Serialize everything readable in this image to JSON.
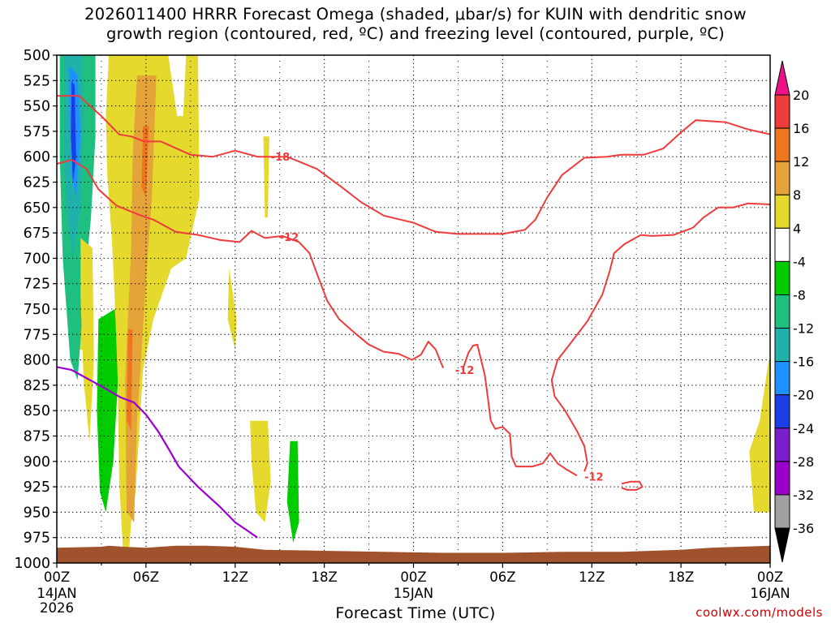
{
  "title": {
    "line1": "2026011400 HRRR Forecast Omega (shaded, μbar/s) for KUIN with dendritic snow",
    "line2": "growth region (contoured, red, ºC) and freezing level (contoured, purple, ºC)"
  },
  "credit": "coolwx.com/models",
  "chart_data": {
    "type": "contour",
    "xlabel": "Forecast Time (UTC)",
    "ylabel": "",
    "x_range_hours": [
      0,
      48
    ],
    "y_range_mb": [
      500,
      1000
    ],
    "y_ticks": [
      500,
      525,
      550,
      575,
      600,
      625,
      650,
      675,
      700,
      725,
      750,
      775,
      800,
      825,
      850,
      875,
      900,
      925,
      950,
      975,
      1000
    ],
    "x_ticks": [
      {
        "h": 0,
        "label": "00Z",
        "sub1": "14JAN",
        "sub2": "2026"
      },
      {
        "h": 6,
        "label": "06Z"
      },
      {
        "h": 12,
        "label": "12Z"
      },
      {
        "h": 18,
        "label": "18Z"
      },
      {
        "h": 24,
        "label": "00Z",
        "sub1": "15JAN"
      },
      {
        "h": 30,
        "label": "06Z"
      },
      {
        "h": 36,
        "label": "12Z"
      },
      {
        "h": 42,
        "label": "18Z"
      },
      {
        "h": 48,
        "label": "00Z",
        "sub1": "16JAN"
      }
    ],
    "colorbar": {
      "labels": [
        "20",
        "16",
        "12",
        "8",
        "4",
        "-4",
        "-8",
        "-12",
        "-16",
        "-20",
        "-24",
        "-28",
        "-32",
        "-36"
      ],
      "colors": [
        "#ee1289",
        "#ee3b3b",
        "#ee7621",
        "#e5a43a",
        "#e5d92e",
        "#ffffff",
        "#00cc00",
        "#1fbf7f",
        "#20b2aa",
        "#1e90ff",
        "#1c3ee6",
        "#7b1fcc",
        "#9a00c8",
        "#a0a0a0",
        "#000000"
      ]
    },
    "omega_regions": [
      {
        "color": "#e5d92e",
        "points": [
          [
            0.5,
            500
          ],
          [
            2.5,
            500
          ],
          [
            2.5,
            600
          ],
          [
            2.0,
            700
          ],
          [
            1.8,
            790
          ],
          [
            1.0,
            790
          ],
          [
            0.5,
            700
          ]
        ]
      },
      {
        "color": "#1fbf7f",
        "points": [
          [
            0.2,
            500
          ],
          [
            2.6,
            500
          ],
          [
            2.6,
            580
          ],
          [
            2.3,
            660
          ],
          [
            1.9,
            720
          ],
          [
            1.4,
            820
          ],
          [
            0.9,
            800
          ],
          [
            0.4,
            700
          ],
          [
            0.2,
            600
          ]
        ]
      },
      {
        "color": "#20b2aa",
        "points": [
          [
            0.5,
            500
          ],
          [
            1.7,
            500
          ],
          [
            1.8,
            560
          ],
          [
            1.6,
            650
          ],
          [
            1.1,
            700
          ],
          [
            0.7,
            660
          ],
          [
            0.5,
            600
          ]
        ]
      },
      {
        "color": "#1e90ff",
        "points": [
          [
            0.8,
            510
          ],
          [
            1.4,
            520
          ],
          [
            1.6,
            580
          ],
          [
            1.3,
            640
          ],
          [
            1.0,
            620
          ],
          [
            0.9,
            570
          ]
        ]
      },
      {
        "color": "#1c3ee6",
        "points": [
          [
            1.0,
            525
          ],
          [
            1.2,
            530
          ],
          [
            1.3,
            600
          ],
          [
            1.1,
            625
          ],
          [
            0.95,
            580
          ]
        ]
      },
      {
        "color": "#e5d92e",
        "points": [
          [
            1.6,
            680
          ],
          [
            2.4,
            690
          ],
          [
            2.5,
            800
          ],
          [
            2.2,
            880
          ],
          [
            1.8,
            820
          ],
          [
            1.6,
            740
          ]
        ]
      },
      {
        "color": "#00cc00",
        "points": [
          [
            2.8,
            760
          ],
          [
            3.9,
            750
          ],
          [
            4.2,
            800
          ],
          [
            3.8,
            900
          ],
          [
            3.3,
            950
          ],
          [
            2.9,
            930
          ],
          [
            2.7,
            850
          ]
        ]
      },
      {
        "color": "#e5d92e",
        "points": [
          [
            3.5,
            500
          ],
          [
            9.5,
            500
          ],
          [
            9.6,
            640
          ],
          [
            8.7,
            700
          ],
          [
            7.7,
            710
          ],
          [
            6.5,
            760
          ],
          [
            5.8,
            810
          ],
          [
            5.3,
            930
          ],
          [
            5.0,
            960
          ],
          [
            4.8,
            1000
          ],
          [
            4.5,
            1000
          ],
          [
            4.2,
            920
          ],
          [
            4.1,
            820
          ],
          [
            3.9,
            740
          ],
          [
            3.7,
            680
          ],
          [
            3.4,
            620
          ],
          [
            3.3,
            560
          ]
        ]
      },
      {
        "color": "#e5a43a",
        "points": [
          [
            5.4,
            520
          ],
          [
            6.7,
            520
          ],
          [
            6.4,
            640
          ],
          [
            6.1,
            700
          ],
          [
            5.8,
            770
          ],
          [
            5.4,
            860
          ],
          [
            5.2,
            960
          ],
          [
            4.7,
            950
          ],
          [
            4.6,
            820
          ],
          [
            5.0,
            690
          ],
          [
            5.1,
            600
          ]
        ]
      },
      {
        "color": "#ee7621",
        "points": [
          [
            5.8,
            570
          ],
          [
            6.2,
            570
          ],
          [
            6.0,
            640
          ],
          [
            5.7,
            630
          ]
        ]
      },
      {
        "color": "#ee7621",
        "points": [
          [
            4.8,
            770
          ],
          [
            5.1,
            770
          ],
          [
            5.0,
            870
          ],
          [
            4.7,
            860
          ]
        ]
      },
      {
        "color": "#ffffff",
        "points": [
          [
            7.5,
            500
          ],
          [
            8.7,
            500
          ],
          [
            8.5,
            560
          ],
          [
            8.1,
            560
          ]
        ]
      },
      {
        "color": "#e5d92e",
        "points": [
          [
            11.6,
            710
          ],
          [
            12.1,
            760
          ],
          [
            12.0,
            790
          ],
          [
            11.5,
            760
          ]
        ]
      },
      {
        "color": "#e5d92e",
        "points": [
          [
            13.9,
            580
          ],
          [
            14.3,
            580
          ],
          [
            14.2,
            660
          ],
          [
            14.0,
            660
          ]
        ]
      },
      {
        "color": "#e5d92e",
        "points": [
          [
            13.0,
            860
          ],
          [
            14.2,
            860
          ],
          [
            14.4,
            920
          ],
          [
            14.0,
            960
          ],
          [
            13.4,
            950
          ],
          [
            13.1,
            900
          ]
        ]
      },
      {
        "color": "#00cc00",
        "points": [
          [
            15.7,
            880
          ],
          [
            16.2,
            880
          ],
          [
            16.3,
            960
          ],
          [
            15.9,
            980
          ],
          [
            15.5,
            940
          ]
        ]
      },
      {
        "color": "#e5d92e",
        "points": [
          [
            47.9,
            800
          ],
          [
            48.0,
            800
          ],
          [
            48.0,
            950
          ],
          [
            46.9,
            950
          ],
          [
            46.6,
            890
          ],
          [
            47.3,
            860
          ]
        ]
      }
    ],
    "red_contours": [
      {
        "label": "-18",
        "label_at": [
          14.4,
          600
        ],
        "points": [
          [
            0,
            540
          ],
          [
            1.5,
            540
          ],
          [
            3.0,
            560
          ],
          [
            4.2,
            578
          ],
          [
            5.0,
            580
          ],
          [
            5.9,
            585
          ],
          [
            7.0,
            585
          ],
          [
            9.0,
            598
          ],
          [
            10.5,
            600
          ],
          [
            12.0,
            594
          ],
          [
            13.5,
            600
          ],
          [
            15.5,
            600
          ],
          [
            17.5,
            612
          ],
          [
            19.0,
            628
          ],
          [
            20.5,
            645
          ],
          [
            22.0,
            658
          ],
          [
            24.0,
            665
          ],
          [
            25.5,
            674
          ],
          [
            27.0,
            676
          ],
          [
            28.5,
            676
          ],
          [
            30.0,
            676
          ],
          [
            31.5,
            672
          ],
          [
            32.2,
            662
          ],
          [
            33.0,
            640
          ],
          [
            34.0,
            618
          ],
          [
            35.5,
            601
          ],
          [
            37.0,
            600
          ],
          [
            38.0,
            598
          ],
          [
            39.5,
            598
          ],
          [
            40.8,
            592
          ],
          [
            42.0,
            576
          ],
          [
            43.0,
            564
          ],
          [
            45.0,
            566
          ],
          [
            46.5,
            573
          ],
          [
            48.0,
            578
          ]
        ]
      },
      {
        "label": "-12",
        "label_at": [
          15.0,
          679
        ],
        "points": [
          [
            0,
            607
          ],
          [
            1.0,
            603
          ],
          [
            2.0,
            612
          ],
          [
            2.8,
            632
          ],
          [
            4.0,
            648
          ],
          [
            5.5,
            657
          ],
          [
            6.5,
            662
          ],
          [
            8.0,
            674
          ],
          [
            9.5,
            677
          ],
          [
            11.0,
            682
          ],
          [
            12.3,
            684
          ],
          [
            13.1,
            673
          ],
          [
            14.0,
            680
          ],
          [
            15.2,
            678
          ],
          [
            16.3,
            684
          ],
          [
            17.0,
            695
          ],
          [
            17.5,
            715
          ],
          [
            18.2,
            742
          ],
          [
            19.0,
            760
          ],
          [
            20.0,
            773
          ],
          [
            21.0,
            785
          ],
          [
            22.0,
            792
          ],
          [
            23.0,
            794
          ],
          [
            23.9,
            800
          ],
          [
            24.5,
            795
          ],
          [
            25.0,
            782
          ],
          [
            25.5,
            790
          ],
          [
            26.0,
            808
          ]
        ]
      },
      {
        "label": "-12",
        "label_at": [
          26.8,
          810
        ],
        "points": [
          [
            27.3,
            810
          ],
          [
            27.7,
            793
          ],
          [
            28.0,
            786
          ],
          [
            28.3,
            785
          ],
          [
            28.8,
            815
          ],
          [
            29.0,
            837
          ],
          [
            29.2,
            860
          ],
          [
            29.5,
            868
          ],
          [
            30.0,
            866
          ],
          [
            30.5,
            873
          ],
          [
            30.6,
            895
          ],
          [
            30.9,
            905
          ],
          [
            32.0,
            905
          ],
          [
            32.7,
            902
          ],
          [
            33.2,
            892
          ],
          [
            33.7,
            902
          ],
          [
            34.3,
            908
          ],
          [
            35.0,
            914
          ]
        ]
      },
      {
        "label": "-12",
        "label_at": [
          35.5,
          915
        ],
        "points": [
          [
            35.5,
            910
          ],
          [
            35.7,
            902
          ],
          [
            35.5,
            885
          ],
          [
            35.0,
            870
          ],
          [
            34.2,
            850
          ],
          [
            33.5,
            836
          ],
          [
            33.3,
            820
          ],
          [
            33.7,
            800
          ],
          [
            34.5,
            785
          ],
          [
            35.7,
            762
          ],
          [
            36.7,
            736
          ],
          [
            37.2,
            713
          ],
          [
            37.5,
            695
          ],
          [
            38.2,
            686
          ],
          [
            39.3,
            677
          ],
          [
            40.0,
            678
          ]
        ]
      },
      {
        "label": "",
        "label_at": null,
        "points": [
          [
            40.0,
            678
          ],
          [
            41.5,
            677
          ],
          [
            42.8,
            670
          ],
          [
            43.5,
            660
          ],
          [
            44.5,
            650
          ],
          [
            45.5,
            650
          ],
          [
            46.5,
            646
          ],
          [
            48.0,
            647
          ]
        ]
      },
      {
        "label": "",
        "label_at": null,
        "points": [
          [
            38.0,
            922
          ],
          [
            38.6,
            920
          ],
          [
            39.2,
            920
          ],
          [
            39.4,
            925
          ],
          [
            39.0,
            928
          ],
          [
            38.4,
            928
          ],
          [
            38.0,
            926
          ]
        ]
      }
    ],
    "freezing_level": {
      "points": [
        [
          0,
          807
        ],
        [
          1.0,
          810
        ],
        [
          2.0,
          818
        ],
        [
          3.0,
          826
        ],
        [
          4.3,
          837
        ],
        [
          5.2,
          842
        ],
        [
          6.0,
          854
        ],
        [
          6.8,
          870
        ],
        [
          7.5,
          887
        ],
        [
          8.2,
          905
        ],
        [
          9.5,
          925
        ],
        [
          11.0,
          945
        ],
        [
          12.0,
          960
        ],
        [
          13.0,
          970
        ],
        [
          13.5,
          975
        ]
      ]
    },
    "terrain": {
      "color": "#a0522d",
      "top_mb": [
        [
          0,
          985
        ],
        [
          3.0,
          984
        ],
        [
          3.5,
          983
        ],
        [
          4.5,
          984
        ],
        [
          6.0,
          985
        ],
        [
          8.0,
          983
        ],
        [
          10.0,
          983
        ],
        [
          12.0,
          984
        ],
        [
          14.0,
          987
        ],
        [
          18.0,
          988
        ],
        [
          22.0,
          989
        ],
        [
          26.0,
          990
        ],
        [
          30.0,
          990
        ],
        [
          34.0,
          989
        ],
        [
          38.0,
          989
        ],
        [
          40.0,
          988
        ],
        [
          42.0,
          987
        ],
        [
          44.0,
          985
        ],
        [
          46.0,
          984
        ],
        [
          48.0,
          983
        ]
      ]
    }
  }
}
